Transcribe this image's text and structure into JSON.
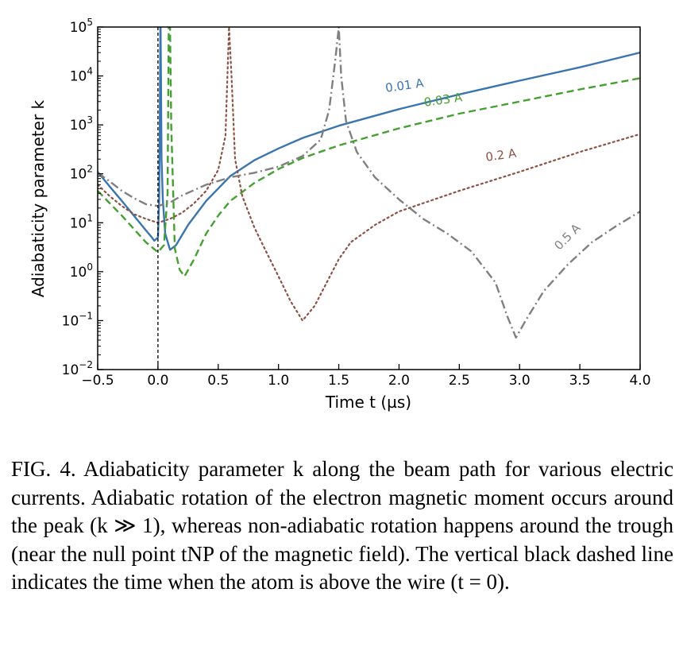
{
  "chart_data": {
    "type": "line",
    "xlabel": "Time  t (µs)",
    "ylabel": "Adiabaticity parameter  k",
    "xlim": [
      -0.5,
      4.0
    ],
    "ylim": [
      0.01,
      100000
    ],
    "yscale": "log",
    "grid": false,
    "x_ticks": [
      "−0.5",
      "0.0",
      "0.5",
      "1.0",
      "1.5",
      "2.0",
      "2.5",
      "3.0",
      "3.5",
      "4.0"
    ],
    "x_tick_values": [
      -0.5,
      0.0,
      0.5,
      1.0,
      1.5,
      2.0,
      2.5,
      3.0,
      3.5,
      4.0
    ],
    "y_tick_exponents": [
      "−2",
      "−1",
      "0",
      "1",
      "2",
      "3",
      "4",
      "5"
    ],
    "y_tick_values": [
      0.01,
      0.1,
      1,
      10,
      100,
      1000,
      10000,
      100000
    ],
    "y_tick_base": "10",
    "vertical_line_x": 0.0,
    "series": [
      {
        "name": "0.01 A",
        "color": "#3a75b0",
        "style": "solid",
        "label_at": [
          2.05,
          5300
        ],
        "label_rotation": -8,
        "points": [
          [
            -0.5,
            110
          ],
          [
            -0.4,
            55
          ],
          [
            -0.3,
            28
          ],
          [
            -0.2,
            14
          ],
          [
            -0.1,
            7
          ],
          [
            -0.05,
            5
          ],
          [
            -0.03,
            4.3
          ],
          [
            0.0,
            5
          ],
          [
            0.01,
            30
          ],
          [
            0.015,
            1000
          ],
          [
            0.02,
            100000
          ],
          [
            0.022,
            100000
          ],
          [
            0.03,
            200
          ],
          [
            0.04,
            30
          ],
          [
            0.06,
            6
          ],
          [
            0.1,
            2.8
          ],
          [
            0.15,
            3.5
          ],
          [
            0.25,
            9
          ],
          [
            0.4,
            28
          ],
          [
            0.6,
            90
          ],
          [
            0.8,
            190
          ],
          [
            1.0,
            330
          ],
          [
            1.2,
            540
          ],
          [
            1.5,
            960
          ],
          [
            2.0,
            2100
          ],
          [
            2.5,
            4200
          ],
          [
            3.0,
            8000
          ],
          [
            3.5,
            15000
          ],
          [
            4.0,
            30000
          ]
        ]
      },
      {
        "name": "0.03 A",
        "color": "#44a030",
        "style": "dashed",
        "label_at": [
          2.37,
          2700
        ],
        "label_rotation": -8,
        "points": [
          [
            -0.5,
            45
          ],
          [
            -0.4,
            25
          ],
          [
            -0.3,
            14
          ],
          [
            -0.2,
            7.5
          ],
          [
            -0.1,
            4
          ],
          [
            0.0,
            2.5
          ],
          [
            0.05,
            3.5
          ],
          [
            0.08,
            40
          ],
          [
            0.09,
            100000
          ],
          [
            0.1,
            100000
          ],
          [
            0.11,
            1000
          ],
          [
            0.14,
            3
          ],
          [
            0.18,
            1.1
          ],
          [
            0.22,
            0.8
          ],
          [
            0.3,
            1.8
          ],
          [
            0.4,
            6
          ],
          [
            0.5,
            14
          ],
          [
            0.6,
            28
          ],
          [
            0.8,
            65
          ],
          [
            1.0,
            125
          ],
          [
            1.2,
            210
          ],
          [
            1.5,
            380
          ],
          [
            2.0,
            850
          ],
          [
            2.5,
            1700
          ],
          [
            3.0,
            3000
          ],
          [
            3.5,
            5300
          ],
          [
            4.0,
            9000
          ]
        ]
      },
      {
        "name": "0.2 A",
        "color": "#8c5145",
        "style": "dotted",
        "label_at": [
          2.85,
          200
        ],
        "label_rotation": -8,
        "points": [
          [
            -0.5,
            60
          ],
          [
            -0.4,
            35
          ],
          [
            -0.3,
            22
          ],
          [
            -0.2,
            15
          ],
          [
            -0.1,
            12
          ],
          [
            0.0,
            10
          ],
          [
            0.1,
            12
          ],
          [
            0.2,
            16
          ],
          [
            0.3,
            25
          ],
          [
            0.4,
            45
          ],
          [
            0.5,
            120
          ],
          [
            0.56,
            600
          ],
          [
            0.59,
            100000
          ],
          [
            0.61,
            10000
          ],
          [
            0.64,
            200
          ],
          [
            0.7,
            35
          ],
          [
            0.8,
            8
          ],
          [
            0.9,
            2.5
          ],
          [
            1.0,
            0.8
          ],
          [
            1.1,
            0.25
          ],
          [
            1.2,
            0.1
          ],
          [
            1.3,
            0.2
          ],
          [
            1.4,
            0.6
          ],
          [
            1.5,
            1.8
          ],
          [
            1.6,
            4
          ],
          [
            1.8,
            9
          ],
          [
            2.0,
            17
          ],
          [
            2.5,
            45
          ],
          [
            3.0,
            110
          ],
          [
            3.5,
            280
          ],
          [
            4.0,
            650
          ]
        ]
      },
      {
        "name": "0.5 A",
        "color": "#808080",
        "style": "dashdot",
        "label_at": [
          3.42,
          4.5
        ],
        "label_rotation": -45,
        "points": [
          [
            -0.5,
            105
          ],
          [
            -0.4,
            70
          ],
          [
            -0.3,
            45
          ],
          [
            -0.2,
            32
          ],
          [
            -0.1,
            24
          ],
          [
            0.0,
            22
          ],
          [
            0.1,
            26
          ],
          [
            0.2,
            36
          ],
          [
            0.4,
            60
          ],
          [
            0.6,
            85
          ],
          [
            0.8,
            105
          ],
          [
            1.0,
            140
          ],
          [
            1.2,
            230
          ],
          [
            1.35,
            500
          ],
          [
            1.42,
            2000
          ],
          [
            1.47,
            20000
          ],
          [
            1.5,
            100000
          ],
          [
            1.52,
            10000
          ],
          [
            1.56,
            1200
          ],
          [
            1.65,
            280
          ],
          [
            1.8,
            85
          ],
          [
            2.0,
            30
          ],
          [
            2.2,
            12
          ],
          [
            2.4,
            6
          ],
          [
            2.6,
            2.6
          ],
          [
            2.8,
            0.6
          ],
          [
            2.9,
            0.12
          ],
          [
            2.97,
            0.045
          ],
          [
            3.05,
            0.1
          ],
          [
            3.2,
            0.4
          ],
          [
            3.4,
            1.4
          ],
          [
            3.6,
            4
          ],
          [
            3.8,
            8.5
          ],
          [
            4.0,
            17
          ]
        ]
      }
    ]
  },
  "caption": {
    "fig": "FIG. 4.",
    "text": "Adiabaticity parameter k along the beam path for various electric currents. Adiabatic rotation of the electron magnetic moment occurs around the peak (k ≫ 1), whereas non-adiabatic rotation happens around the trough (near the null point tNP of the magnetic field). The vertical black dashed line indicates the time when the atom is above the wire (t = 0)."
  }
}
